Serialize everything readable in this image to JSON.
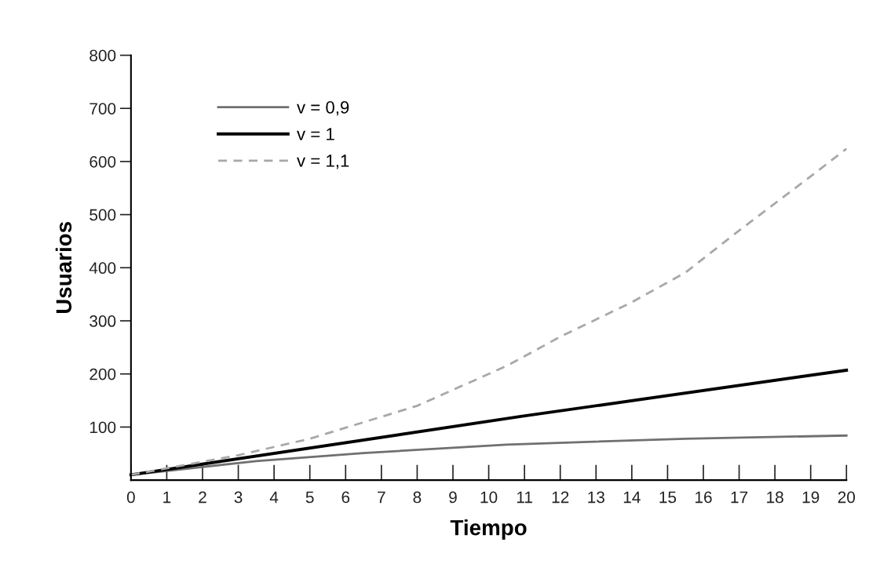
{
  "chart_data": {
    "type": "line",
    "xlabel": "Tiempo",
    "ylabel": "Usuarios",
    "xlim": [
      0,
      20
    ],
    "xticks": [
      0,
      1,
      2,
      3,
      4,
      5,
      6,
      7,
      8,
      9,
      10,
      11,
      12,
      13,
      14,
      15,
      16,
      17,
      18,
      19,
      20
    ],
    "ylim": [
      0,
      800
    ],
    "yticks": [
      100,
      200,
      300,
      400,
      500,
      600,
      700,
      800
    ],
    "grid": false,
    "legend": "top left",
    "marker": "none",
    "series": [
      {
        "name": "v = 0,9",
        "color": "#707070",
        "line_style": "solid",
        "x": [
          0,
          3.5,
          6.5,
          10.5,
          15.5,
          20
        ],
        "values": [
          10,
          36,
          51,
          67,
          78,
          84
        ]
      },
      {
        "name": "v = 1",
        "color": "#000000",
        "line_style": "solid",
        "x": [
          0,
          10.9,
          20
        ],
        "values": [
          10,
          120,
          207
        ]
      },
      {
        "name": "v = 1,1",
        "color": "#a8a8a8",
        "line_style": "dashed",
        "x": [
          0,
          3,
          5,
          8,
          10.5,
          12,
          14,
          15.5,
          17,
          19,
          20
        ],
        "values": [
          10,
          47,
          78,
          140,
          215,
          270,
          335,
          391,
          470,
          572,
          624
        ]
      }
    ]
  }
}
